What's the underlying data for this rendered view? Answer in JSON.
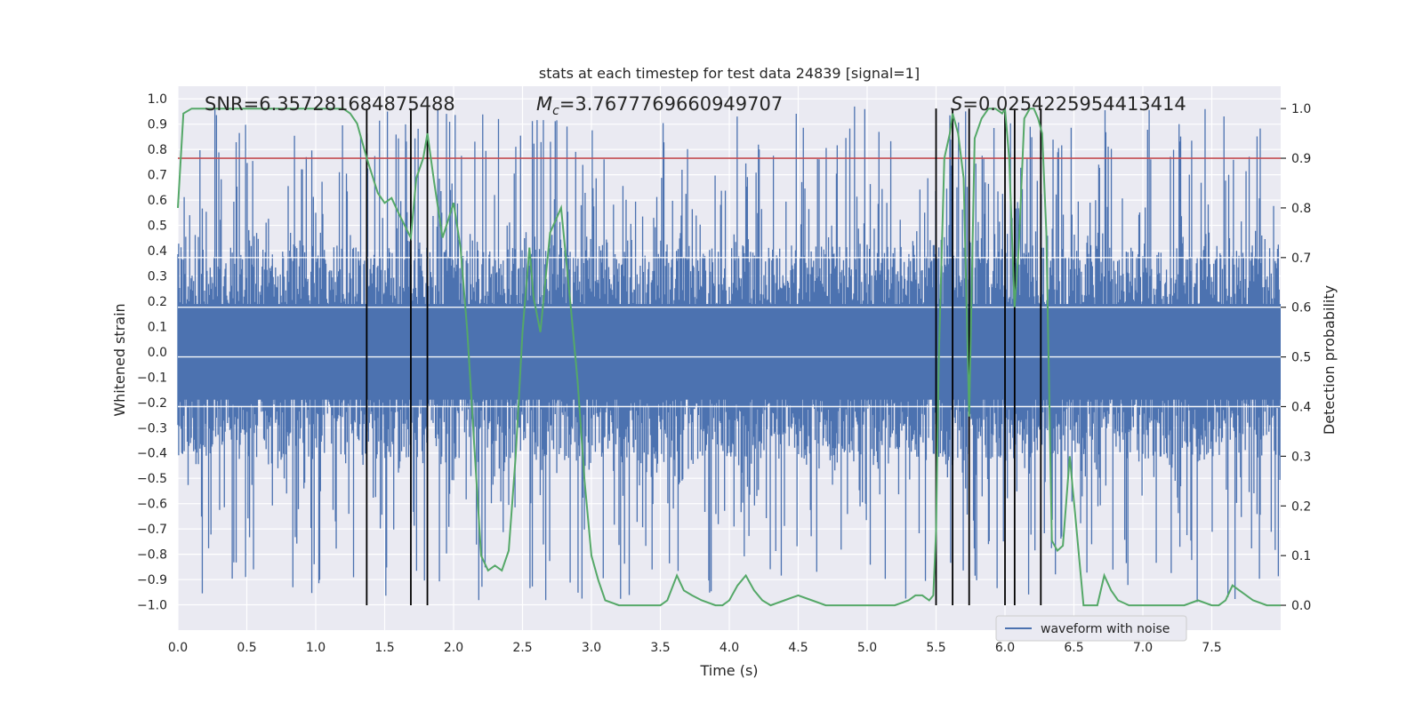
{
  "chart_data": {
    "type": "line",
    "title": "stats at each timestep for test data 24839 [signal=1]",
    "xlabel": "Time (s)",
    "ylabel": "Whitened strain",
    "y2label": "Detection probability",
    "xlim": [
      0,
      8
    ],
    "ylim": [
      -1.1,
      1.05
    ],
    "y2lim": [
      -0.05,
      1.045
    ],
    "xticks": [
      0.0,
      0.5,
      1.0,
      1.5,
      2.0,
      2.5,
      3.0,
      3.5,
      4.0,
      4.5,
      5.0,
      5.5,
      6.0,
      6.5,
      7.0,
      7.5
    ],
    "xtick_labels": [
      "0.0",
      "0.5",
      "1.0",
      "1.5",
      "2.0",
      "2.5",
      "3.0",
      "3.5",
      "4.0",
      "4.5",
      "5.0",
      "5.5",
      "6.0",
      "6.5",
      "7.0",
      "7.5"
    ],
    "yticks": [
      1.0,
      0.9,
      0.8,
      0.7,
      0.6,
      0.5,
      0.4,
      0.3,
      0.2,
      0.1,
      0.0,
      -0.1,
      -0.2,
      -0.3,
      -0.4,
      -0.5,
      -0.6,
      -0.7,
      -0.8,
      -0.9,
      -1.0
    ],
    "ytick_labels": [
      "1.0",
      "0.9",
      "0.8",
      "0.7",
      "0.6",
      "0.5",
      "0.4",
      "0.3",
      "0.2",
      "0.1",
      "0.0",
      "−0.1",
      "−0.2",
      "−0.3",
      "−0.4",
      "−0.5",
      "−0.6",
      "−0.7",
      "−0.8",
      "−0.9",
      "−1.0"
    ],
    "y2ticks": [
      1.0,
      0.9,
      0.8,
      0.7,
      0.6,
      0.5,
      0.4,
      0.3,
      0.2,
      0.1,
      0.0
    ],
    "y2tick_labels": [
      "1.0",
      "0.9",
      "0.8",
      "0.7",
      "0.6",
      "0.5",
      "0.4",
      "0.3",
      "0.2",
      "0.1",
      "0.0"
    ],
    "grid": true,
    "annotations": {
      "snr": "SNR=6.357281684875488",
      "mc_symbol": "M",
      "mc_sub": "c",
      "mc_value": "=3.7677769660949707",
      "s_symbol": "S",
      "s_value": "=0.0254225954413414"
    },
    "threshold_y2": 0.9,
    "vlines_x": [
      1.37,
      1.69,
      1.81,
      5.5,
      5.62,
      5.74,
      6.0,
      6.07,
      6.26
    ],
    "legend": {
      "label": "waveform with noise",
      "location": "lower-right"
    },
    "series": [
      {
        "name": "waveform with noise",
        "axis": "left",
        "color": "#4c72b0",
        "envelope": {
          "duration": 8.0,
          "sample_rate": 2048,
          "typical_max": 0.42,
          "typical_min": -0.42,
          "peak_max": 0.97,
          "peak_min": -0.99
        }
      },
      {
        "axis": "right",
        "color": "#55a868",
        "x": [
          0.0,
          0.04,
          0.1,
          0.2,
          0.4,
          0.6,
          0.8,
          1.0,
          1.1,
          1.2,
          1.25,
          1.3,
          1.37,
          1.45,
          1.5,
          1.55,
          1.6,
          1.69,
          1.73,
          1.78,
          1.81,
          1.86,
          1.92,
          2.0,
          2.05,
          2.1,
          2.15,
          2.2,
          2.25,
          2.3,
          2.35,
          2.4,
          2.45,
          2.5,
          2.55,
          2.58,
          2.63,
          2.7,
          2.78,
          2.85,
          2.9,
          2.95,
          3.0,
          3.05,
          3.1,
          3.2,
          3.3,
          3.4,
          3.5,
          3.55,
          3.62,
          3.67,
          3.73,
          3.8,
          3.9,
          3.95,
          4.0,
          4.06,
          4.12,
          4.18,
          4.24,
          4.3,
          4.4,
          4.5,
          4.6,
          4.7,
          4.8,
          4.9,
          5.0,
          5.1,
          5.2,
          5.3,
          5.35,
          5.4,
          5.45,
          5.48,
          5.5,
          5.52,
          5.56,
          5.6,
          5.62,
          5.66,
          5.7,
          5.74,
          5.78,
          5.83,
          5.88,
          5.93,
          5.98,
          6.0,
          6.03,
          6.07,
          6.1,
          6.14,
          6.18,
          6.21,
          6.24,
          6.27,
          6.3,
          6.34,
          6.38,
          6.42,
          6.47,
          6.52,
          6.57,
          6.62,
          6.67,
          6.72,
          6.77,
          6.82,
          6.9,
          7.0,
          7.1,
          7.2,
          7.3,
          7.4,
          7.5,
          7.55,
          7.6,
          7.65,
          7.7,
          7.75,
          7.8,
          7.9,
          8.0
        ],
        "values": [
          0.8,
          0.99,
          1.0,
          1.0,
          1.0,
          1.0,
          1.0,
          1.0,
          1.0,
          1.0,
          0.99,
          0.97,
          0.9,
          0.83,
          0.81,
          0.82,
          0.79,
          0.74,
          0.86,
          0.9,
          0.95,
          0.85,
          0.74,
          0.81,
          0.72,
          0.55,
          0.32,
          0.1,
          0.07,
          0.08,
          0.07,
          0.11,
          0.3,
          0.55,
          0.72,
          0.62,
          0.55,
          0.75,
          0.8,
          0.6,
          0.45,
          0.25,
          0.1,
          0.05,
          0.01,
          0.0,
          0.0,
          0.0,
          0.0,
          0.01,
          0.06,
          0.03,
          0.02,
          0.01,
          0.0,
          0.0,
          0.01,
          0.04,
          0.06,
          0.03,
          0.01,
          0.0,
          0.01,
          0.02,
          0.01,
          0.0,
          0.0,
          0.0,
          0.0,
          0.0,
          0.0,
          0.01,
          0.02,
          0.02,
          0.01,
          0.02,
          0.15,
          0.5,
          0.9,
          0.95,
          0.99,
          0.95,
          0.86,
          0.38,
          0.94,
          0.98,
          1.0,
          1.0,
          0.99,
          1.0,
          0.9,
          0.6,
          0.72,
          0.98,
          1.0,
          1.0,
          0.98,
          0.95,
          0.75,
          0.13,
          0.11,
          0.12,
          0.3,
          0.15,
          0.0,
          0.0,
          0.0,
          0.06,
          0.03,
          0.01,
          0.0,
          0.0,
          0.0,
          0.0,
          0.0,
          0.01,
          0.0,
          0.0,
          0.01,
          0.04,
          0.03,
          0.02,
          0.01,
          0.0,
          0.0
        ]
      }
    ]
  }
}
